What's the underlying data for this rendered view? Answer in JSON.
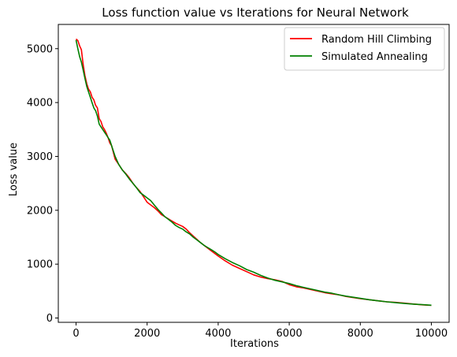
{
  "chart_data": {
    "type": "line",
    "title": "Loss function value vs Iterations for Neural Network",
    "xlabel": "Iterations",
    "ylabel": "Loss value",
    "xlim": [
      -500,
      10500
    ],
    "ylim": [
      -80,
      5450
    ],
    "xticks": [
      0,
      2000,
      4000,
      6000,
      8000,
      10000
    ],
    "yticks": [
      0,
      1000,
      2000,
      3000,
      4000,
      5000
    ],
    "grid": false,
    "legend_position": "top-right",
    "series": [
      {
        "name": "Random Hill Climbing",
        "color": "#ff0000",
        "x": [
          0,
          50,
          100,
          150,
          200,
          250,
          300,
          350,
          400,
          450,
          500,
          550,
          600,
          650,
          700,
          750,
          800,
          850,
          900,
          950,
          1000,
          1100,
          1200,
          1300,
          1400,
          1500,
          1600,
          1700,
          1800,
          1900,
          2000,
          2100,
          2200,
          2300,
          2400,
          2500,
          2600,
          2700,
          2800,
          2900,
          3000,
          3100,
          3200,
          3300,
          3400,
          3500,
          3600,
          3700,
          3800,
          3900,
          4000,
          4200,
          4400,
          4600,
          4800,
          5000,
          5200,
          5400,
          5600,
          5800,
          6000,
          6200,
          6400,
          6600,
          6800,
          7000,
          7200,
          7400,
          7600,
          7800,
          8000,
          8250,
          8500,
          8750,
          9000,
          9250,
          9500,
          9750,
          10000
        ],
        "y": [
          5180,
          5150,
          5050,
          4980,
          4700,
          4500,
          4350,
          4250,
          4200,
          4100,
          4050,
          3950,
          3900,
          3700,
          3650,
          3550,
          3500,
          3430,
          3350,
          3250,
          3200,
          2950,
          2850,
          2750,
          2680,
          2600,
          2500,
          2420,
          2350,
          2250,
          2150,
          2100,
          2050,
          1990,
          1920,
          1880,
          1840,
          1800,
          1760,
          1730,
          1700,
          1650,
          1580,
          1520,
          1460,
          1400,
          1350,
          1300,
          1250,
          1200,
          1150,
          1060,
          980,
          920,
          860,
          800,
          760,
          730,
          710,
          680,
          620,
          580,
          560,
          530,
          500,
          470,
          450,
          430,
          400,
          380,
          360,
          340,
          320,
          300,
          290,
          275,
          260,
          245,
          235
        ]
      },
      {
        "name": "Simulated Annealing",
        "color": "#008000",
        "x": [
          0,
          50,
          100,
          150,
          200,
          250,
          300,
          350,
          400,
          450,
          500,
          550,
          600,
          650,
          700,
          750,
          800,
          850,
          900,
          950,
          1000,
          1100,
          1200,
          1300,
          1400,
          1500,
          1600,
          1700,
          1800,
          1900,
          2000,
          2100,
          2200,
          2300,
          2400,
          2500,
          2600,
          2700,
          2800,
          2900,
          3000,
          3100,
          3200,
          3300,
          3400,
          3500,
          3600,
          3700,
          3800,
          3900,
          4000,
          4200,
          4400,
          4600,
          4800,
          5000,
          5200,
          5400,
          5600,
          5800,
          6000,
          6200,
          6400,
          6600,
          6800,
          7000,
          7200,
          7400,
          7600,
          7800,
          8000,
          8250,
          8500,
          8750,
          9000,
          9250,
          9500,
          9750,
          10000
        ],
        "y": [
          5160,
          5000,
          4850,
          4750,
          4600,
          4450,
          4300,
          4200,
          4100,
          4000,
          3900,
          3850,
          3750,
          3600,
          3550,
          3500,
          3450,
          3400,
          3350,
          3300,
          3200,
          3000,
          2850,
          2750,
          2670,
          2580,
          2500,
          2420,
          2330,
          2280,
          2230,
          2180,
          2100,
          2020,
          1950,
          1880,
          1830,
          1780,
          1720,
          1680,
          1650,
          1600,
          1560,
          1500,
          1450,
          1400,
          1350,
          1310,
          1270,
          1230,
          1180,
          1100,
          1030,
          970,
          900,
          850,
          790,
          740,
          700,
          670,
          640,
          600,
          570,
          540,
          510,
          480,
          460,
          430,
          405,
          385,
          365,
          340,
          320,
          300,
          285,
          270,
          258,
          248,
          238
        ]
      }
    ]
  }
}
